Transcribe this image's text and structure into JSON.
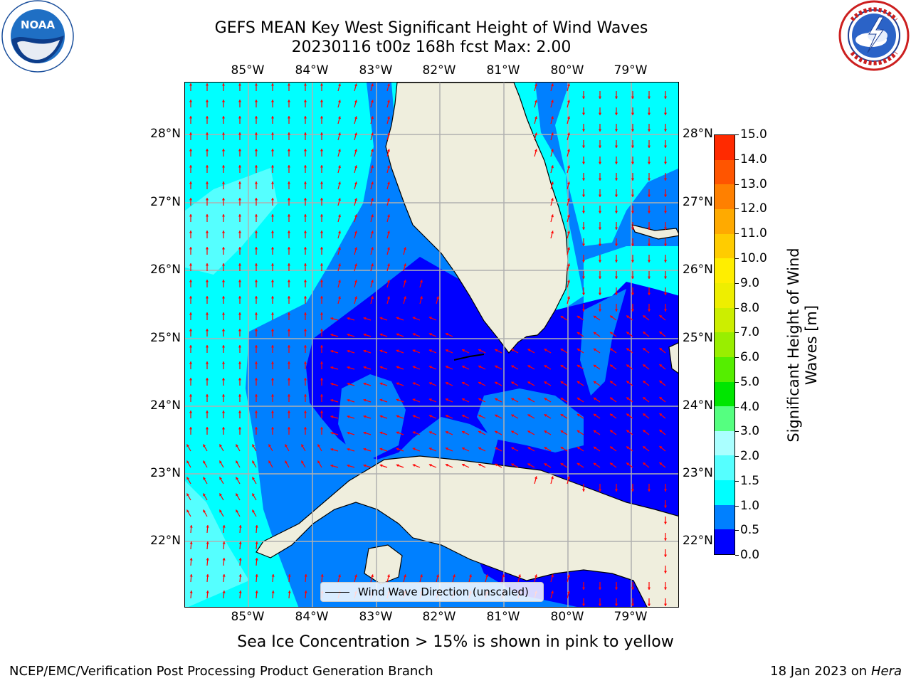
{
  "header": {
    "title_line1": "GEFS MEAN Key West Significant Height of Wind Waves",
    "title_line2": "20230116 t00z 168h fcst   Max: 2.00"
  },
  "axes": {
    "lon_ticks": [
      "85°W",
      "84°W",
      "83°W",
      "82°W",
      "81°W",
      "80°W",
      "79°W"
    ],
    "lat_ticks": [
      "28°N",
      "27°N",
      "26°N",
      "25°N",
      "24°N",
      "23°N",
      "22°N"
    ]
  },
  "map": {
    "extent": {
      "lon_min": -86.0,
      "lon_max": -78.3,
      "lat_min": 21.0,
      "lat_max": 28.8
    },
    "ocean_colors": {
      "0.0-0.5": "#0000ff",
      "0.5-1.0": "#0080ff",
      "1.0-1.5": "#00ffff",
      "1.5-2.0": "#55ffff"
    },
    "land_color": "#efeedd",
    "gridline_color": "#b0b0b0",
    "arrow_color": "#ff0000"
  },
  "legend": {
    "label": "Wind Wave Direction (unscaled)"
  },
  "colorbar": {
    "ticks": [
      "0.0",
      "0.5",
      "1.0",
      "1.5",
      "2.0",
      "3.0",
      "4.0",
      "5.0",
      "6.0",
      "7.0",
      "8.0",
      "9.0",
      "10.0",
      "11.0",
      "12.0",
      "13.0",
      "14.0",
      "15.0"
    ],
    "colors": [
      "#0000ff",
      "#0080ff",
      "#00ffff",
      "#55ffff",
      "#aaffff",
      "#55ff80",
      "#00e600",
      "#55ee00",
      "#99ee00",
      "#ccee00",
      "#eeee00",
      "#ffee00",
      "#ffcc00",
      "#ffaa00",
      "#ff8000",
      "#ff5500",
      "#ff2a00"
    ],
    "label": "Significant Height of Wind Waves [m]"
  },
  "note": "Sea Ice Concentration > 15% is shown in pink to yellow",
  "footer": {
    "left": "NCEP/EMC/Verification Post Processing Product Generation Branch",
    "right_date": "18 Jan 2023 on",
    "right_machine": "Hera"
  },
  "logos": {
    "noaa_text": "NOAA"
  }
}
